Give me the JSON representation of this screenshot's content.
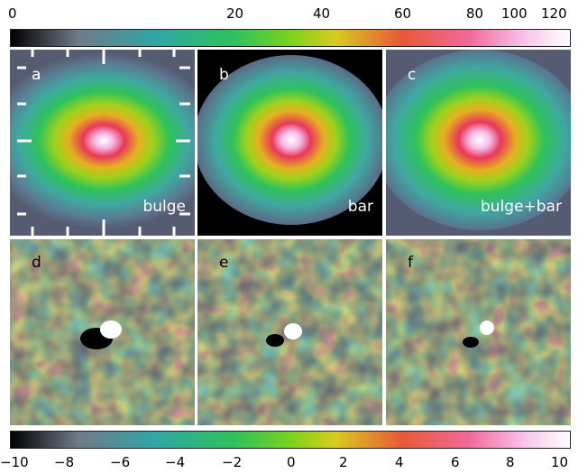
{
  "top_colorbar": {
    "ticks": [
      {
        "value": 0,
        "label": "0"
      },
      {
        "value": 20,
        "label": "20"
      },
      {
        "value": 40,
        "label": "40"
      },
      {
        "value": 60,
        "label": "60"
      },
      {
        "value": 80,
        "label": "80"
      },
      {
        "value": 100,
        "label": "100"
      },
      {
        "value": 120,
        "label": "120"
      }
    ],
    "range": [
      0,
      125
    ]
  },
  "bottom_colorbar": {
    "ticks": [
      {
        "value": -10,
        "label": "−10"
      },
      {
        "value": -8,
        "label": "−8"
      },
      {
        "value": -6,
        "label": "−6"
      },
      {
        "value": -4,
        "label": "−4"
      },
      {
        "value": -2,
        "label": "−2"
      },
      {
        "value": 0,
        "label": "0"
      },
      {
        "value": 2,
        "label": "2"
      },
      {
        "value": 4,
        "label": "4"
      },
      {
        "value": 6,
        "label": "6"
      },
      {
        "value": 8,
        "label": "8"
      },
      {
        "value": 10,
        "label": "10"
      }
    ],
    "range": [
      -10,
      10
    ]
  },
  "colormap": [
    "#000000",
    "#7a8590",
    "#2fa6a6",
    "#2fc25a",
    "#5ed020",
    "#d8cc20",
    "#e85838",
    "#f06a9a",
    "#f8c4ec",
    "#ffffff"
  ],
  "panels": [
    {
      "label": "a",
      "component": "bulge"
    },
    {
      "label": "b",
      "component": "bar"
    },
    {
      "label": "c",
      "component": "bulge+bar"
    },
    {
      "label": "d",
      "component": ""
    },
    {
      "label": "e",
      "component": ""
    },
    {
      "label": "f",
      "component": ""
    }
  ]
}
